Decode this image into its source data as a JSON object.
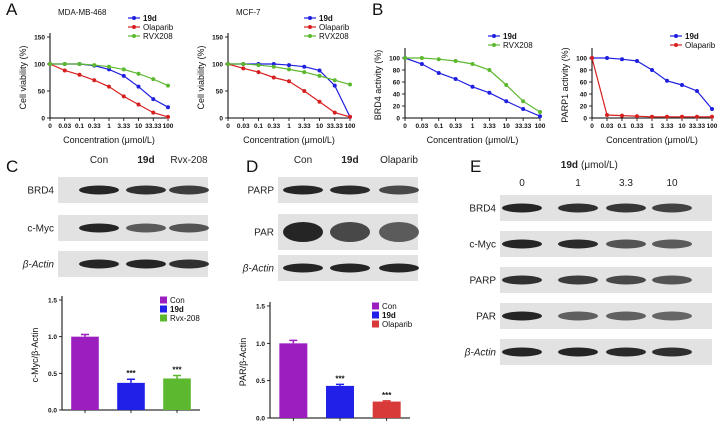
{
  "panel_labels": [
    "A",
    "B",
    "C",
    "D",
    "E"
  ],
  "chart_data": [
    {
      "type": "line",
      "title": "MDA-MB-468",
      "x_label": "Concentration (μmol/L)",
      "y_label": "Cell viability (%)",
      "categories": [
        "0",
        "0.03",
        "0.1",
        "0.33",
        "1",
        "3.33",
        "10",
        "33.33",
        "100"
      ],
      "ylim": [
        0,
        150
      ],
      "yticks": [
        0,
        50,
        100,
        150
      ],
      "grid": false,
      "legend": "upper right",
      "series": [
        {
          "name": "19d",
          "color": "#1f1fe0",
          "values": [
            100,
            100,
            100,
            97,
            90,
            78,
            58,
            35,
            20
          ]
        },
        {
          "name": "Olaparib",
          "color": "#d62020",
          "values": [
            100,
            88,
            80,
            70,
            58,
            40,
            25,
            10,
            2
          ]
        },
        {
          "name": "RVX208",
          "color": "#5cb82e",
          "values": [
            100,
            100,
            100,
            98,
            95,
            90,
            82,
            72,
            60
          ]
        }
      ]
    },
    {
      "type": "line",
      "title": "MCF-7",
      "x_label": "Concentration (μmol/L)",
      "y_label": "Cell viability (%)",
      "categories": [
        "0",
        "0.03",
        "0.1",
        "0.33",
        "1",
        "3.33",
        "10",
        "33.33",
        "100"
      ],
      "ylim": [
        0,
        150
      ],
      "yticks": [
        0,
        50,
        100,
        150
      ],
      "grid": false,
      "legend": "upper right",
      "series": [
        {
          "name": "19d",
          "color": "#1f1fe0",
          "values": [
            100,
            100,
            100,
            100,
            98,
            95,
            88,
            60,
            2
          ]
        },
        {
          "name": "Olaparib",
          "color": "#d62020",
          "values": [
            100,
            92,
            85,
            75,
            68,
            50,
            30,
            10,
            2
          ]
        },
        {
          "name": "RVX208",
          "color": "#5cb82e",
          "values": [
            100,
            100,
            98,
            95,
            90,
            85,
            78,
            70,
            62
          ]
        }
      ]
    },
    {
      "type": "line",
      "x_label": "Concentration (μmol/L)",
      "y_label": "BRD4 activity (%)",
      "categories": [
        "0",
        "0.03",
        "0.1",
        "0.33",
        "1",
        "3.33",
        "10",
        "33.33",
        "100"
      ],
      "ylim": [
        0,
        110
      ],
      "yticks": [
        0,
        20,
        40,
        60,
        80,
        100
      ],
      "grid": false,
      "legend": "upper right",
      "series": [
        {
          "name": "19d",
          "color": "#1f1fe0",
          "values": [
            100,
            90,
            75,
            65,
            52,
            42,
            28,
            15,
            3
          ]
        },
        {
          "name": "RVX208",
          "color": "#5cb82e",
          "values": [
            100,
            100,
            98,
            95,
            90,
            80,
            55,
            28,
            10
          ]
        }
      ]
    },
    {
      "type": "line",
      "x_label": "Concentration (μmol/L)",
      "y_label": "PARP1 activity (%)",
      "categories": [
        "0",
        "0.03",
        "0.1",
        "0.33",
        "1",
        "3.33",
        "10",
        "33.33",
        "100"
      ],
      "ylim": [
        0,
        110
      ],
      "yticks": [
        0,
        20,
        40,
        60,
        80,
        100
      ],
      "grid": false,
      "legend": "upper right",
      "series": [
        {
          "name": "19d",
          "color": "#1f1fe0",
          "values": [
            100,
            100,
            98,
            95,
            80,
            62,
            55,
            45,
            15
          ]
        },
        {
          "name": "Olaparib",
          "color": "#d62020",
          "values": [
            100,
            5,
            4,
            3,
            2,
            2,
            2,
            2,
            2
          ]
        }
      ]
    },
    {
      "type": "bar",
      "y_label": "c-Myc/β-Actin",
      "categories": [
        null
      ],
      "ylim": [
        0,
        1.5
      ],
      "yticks": [
        {
          "value": 0,
          "label": "0.0"
        },
        0.5,
        {
          "value": 1,
          "label": "1.0"
        },
        1.5
      ],
      "legend": "upper right",
      "series": [
        {
          "name": "Con",
          "color": "#9b1fbf",
          "values": [
            1.0
          ],
          "errors": [
            0.03
          ]
        },
        {
          "name": "19d",
          "color": "#2020e8",
          "values": [
            0.37
          ],
          "errors": [
            0.05
          ],
          "annotation": "***"
        },
        {
          "name": "Rvx-208",
          "color": "#5cb82e",
          "values": [
            0.43
          ],
          "errors": [
            0.04
          ],
          "annotation": "***"
        }
      ]
    },
    {
      "type": "bar",
      "y_label": "PAR/β-Actin",
      "categories": [
        null
      ],
      "ylim": [
        0,
        1.5
      ],
      "yticks": [
        {
          "value": 0,
          "label": "0.0"
        },
        0.5,
        {
          "value": 1,
          "label": "1.0"
        },
        1.5
      ],
      "legend": "upper right",
      "series": [
        {
          "name": "Con",
          "color": "#9b1fbf",
          "values": [
            1.0
          ],
          "errors": [
            0.04
          ]
        },
        {
          "name": "19d",
          "color": "#2020e8",
          "values": [
            0.43
          ],
          "errors": [
            0.02
          ],
          "annotation": "***"
        },
        {
          "name": "Olaparib",
          "color": "#d83a3a",
          "values": [
            0.22
          ],
          "errors": [
            0.01
          ],
          "annotation": "***"
        }
      ]
    }
  ],
  "blots": [
    {
      "lanes": [
        "Con",
        "19d",
        "Rvx-208"
      ],
      "rows": [
        "BRD4",
        "c-Myc",
        "β-Actin"
      ]
    },
    {
      "lanes": [
        "Con",
        "19d",
        "Olaparib"
      ],
      "rows": [
        "PARP",
        "PAR",
        "β-Actin"
      ]
    },
    {
      "treatment": "19d",
      "unit": "(μmol/L)",
      "lanes": [
        "0",
        "1",
        "3.3",
        "10"
      ],
      "rows": [
        "BRD4",
        "c-Myc",
        "PARP",
        "PAR",
        "β-Actin"
      ]
    }
  ]
}
